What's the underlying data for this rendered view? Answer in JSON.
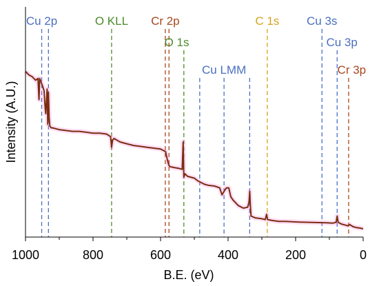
{
  "chart_data": {
    "type": "line",
    "title": "",
    "xlabel": "B.E. (eV)",
    "ylabel": "Intensity (A.U.)",
    "xlim": [
      1000,
      0
    ],
    "x_reversed": true,
    "x_ticks": [
      1000,
      800,
      600,
      400,
      200,
      0
    ],
    "y_ticks_shown": false,
    "series": [
      {
        "color": "#7a2d10",
        "points": [
          [
            1000,
            90
          ],
          [
            990,
            88
          ],
          [
            980,
            87
          ],
          [
            970,
            85
          ],
          [
            963,
            86
          ],
          [
            960,
            74
          ],
          [
            958,
            86
          ],
          [
            950,
            82
          ],
          [
            945,
            79
          ],
          [
            942,
            70
          ],
          [
            940,
            66
          ],
          [
            936,
            80
          ],
          [
            934,
            60
          ],
          [
            932,
            78
          ],
          [
            930,
            64
          ],
          [
            928,
            59
          ],
          [
            924,
            58
          ],
          [
            920,
            58
          ],
          [
            910,
            57.5
          ],
          [
            900,
            57
          ],
          [
            880,
            56.5
          ],
          [
            860,
            56
          ],
          [
            840,
            56
          ],
          [
            820,
            55.5
          ],
          [
            800,
            55
          ],
          [
            780,
            55
          ],
          [
            760,
            54.5
          ],
          [
            748,
            53
          ],
          [
            745,
            47
          ],
          [
            742,
            51
          ],
          [
            738,
            52
          ],
          [
            720,
            50
          ],
          [
            700,
            49
          ],
          [
            680,
            48
          ],
          [
            660,
            47.5
          ],
          [
            640,
            47
          ],
          [
            620,
            46.5
          ],
          [
            600,
            46
          ],
          [
            590,
            45
          ],
          [
            585,
            44.5
          ],
          [
            580,
            40
          ],
          [
            576,
            37
          ],
          [
            572,
            36
          ],
          [
            560,
            35.5
          ],
          [
            545,
            35
          ],
          [
            536,
            34.5
          ],
          [
            533,
            50
          ],
          [
            531,
            30
          ],
          [
            528,
            32
          ],
          [
            520,
            30.5
          ],
          [
            500,
            29.5
          ],
          [
            490,
            28
          ],
          [
            480,
            27
          ],
          [
            470,
            26
          ],
          [
            460,
            25.5
          ],
          [
            440,
            25
          ],
          [
            425,
            24
          ],
          [
            418,
            20
          ],
          [
            412,
            22
          ],
          [
            405,
            24
          ],
          [
            398,
            24
          ],
          [
            392,
            19
          ],
          [
            385,
            17
          ],
          [
            370,
            14
          ],
          [
            355,
            12.5
          ],
          [
            342,
            13
          ],
          [
            338,
            16
          ],
          [
            336,
            22
          ],
          [
            334,
            14
          ],
          [
            332,
            8
          ],
          [
            320,
            7
          ],
          [
            300,
            6.5
          ],
          [
            290,
            6
          ],
          [
            286,
            9
          ],
          [
            283,
            6
          ],
          [
            270,
            5.5
          ],
          [
            250,
            5
          ],
          [
            230,
            5
          ],
          [
            210,
            4.8
          ],
          [
            190,
            4.6
          ],
          [
            170,
            4.5
          ],
          [
            150,
            4.4
          ],
          [
            130,
            4.3
          ],
          [
            110,
            4.2
          ],
          [
            90,
            4
          ],
          [
            80,
            4.5
          ],
          [
            77,
            8
          ],
          [
            74,
            4.5
          ],
          [
            65,
            3.5
          ],
          [
            55,
            3
          ],
          [
            45,
            2.5
          ],
          [
            40,
            3.2
          ],
          [
            30,
            2
          ],
          [
            20,
            1.5
          ],
          [
            10,
            1.2
          ],
          [
            0,
            0.8
          ]
        ]
      }
    ],
    "peak_markers": [
      {
        "label": "Cu 2p",
        "color": "#4a6fc1",
        "positions": [
          952,
          932
        ],
        "label_x": 952,
        "label_row": 1
      },
      {
        "label": "O KLL",
        "color": "#4c8a2b",
        "positions": [
          745
        ],
        "label_x": 745,
        "label_row": 1
      },
      {
        "label": "Cr 2p",
        "color": "#a9461f",
        "positions": [
          586,
          575
        ],
        "label_x": 586,
        "label_row": 1
      },
      {
        "label": "O 1s",
        "color": "#4c8a2b",
        "positions": [
          531
        ],
        "label_x": 552,
        "label_row": 2
      },
      {
        "label": "Cu LMM",
        "color": "#4a6fc1",
        "positions": [
          484,
          412,
          336
        ],
        "label_x": 412,
        "label_row": 3
      },
      {
        "label": "C 1s",
        "color": "#d6a31c",
        "positions": [
          284
        ],
        "label_x": 284,
        "label_row": 1
      },
      {
        "label": "Cu 3s",
        "color": "#4a6fc1",
        "positions": [
          122
        ],
        "label_x": 122,
        "label_row": 1
      },
      {
        "label": "Cu 3p",
        "color": "#4a6fc1",
        "positions": [
          77
        ],
        "label_x": 63,
        "label_row": 2
      },
      {
        "label": "Cr 3p",
        "color": "#a9461f",
        "positions": [
          43
        ],
        "label_x": 34,
        "label_row": 3
      }
    ],
    "grid": false,
    "legend": "none"
  }
}
